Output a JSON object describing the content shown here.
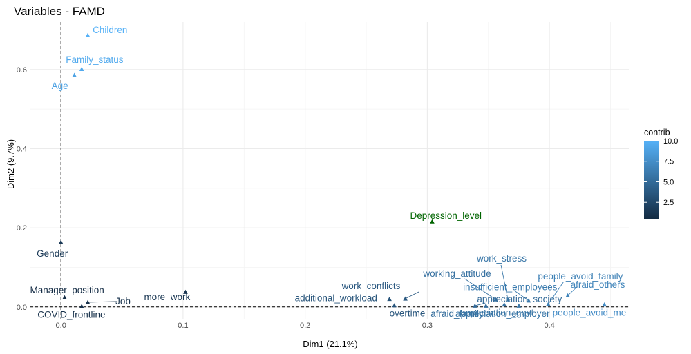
{
  "chart_data": {
    "type": "scatter",
    "title": "Variables - FAMD",
    "xlabel": "Dim1 (21.1%)",
    "ylabel": "Dim2 (9.7%)",
    "xlim": [
      -0.025,
      0.465
    ],
    "ylim": [
      -0.03,
      0.72
    ],
    "x_ticks": [
      0.0,
      0.1,
      0.2,
      0.3,
      0.4
    ],
    "x_tick_labels": [
      "0.0",
      "0.1",
      "0.2",
      "0.3",
      "0.4"
    ],
    "y_ticks": [
      0.0,
      0.2,
      0.4,
      0.6
    ],
    "y_tick_labels": [
      "0.0",
      "0.2",
      "0.4",
      "0.6"
    ],
    "grid": true,
    "reference_lines": {
      "x": 0,
      "y": 0
    },
    "legend": {
      "title": "contrib",
      "position": "right",
      "ticks": [
        "2.5",
        "5.0",
        "7.5",
        "10.0"
      ],
      "tick_values": [
        2.5,
        5.0,
        7.5,
        10.0
      ],
      "range": [
        0.5,
        10.0
      ],
      "low_color": "#132b43",
      "high_color": "#56b1f7"
    },
    "points": [
      {
        "label": "Children",
        "x": 0.022,
        "y": 0.687,
        "contrib": 10.0
      },
      {
        "label": "Family_status",
        "x": 0.017,
        "y": 0.601,
        "contrib": 9.5
      },
      {
        "label": "Age",
        "x": 0.011,
        "y": 0.586,
        "contrib": 9.0
      },
      {
        "label": "Depression_level",
        "x": 0.304,
        "y": 0.216,
        "supplementary": true
      },
      {
        "label": "Gender",
        "x": 0.0,
        "y": 0.164,
        "contrib": 1.5
      },
      {
        "label": "Manager_position",
        "x": 0.003,
        "y": 0.024,
        "contrib": 0.6
      },
      {
        "label": "Job",
        "x": 0.022,
        "y": 0.012,
        "contrib": 1.0
      },
      {
        "label": "COVID_frontline",
        "x": 0.017,
        "y": 0.002,
        "contrib": 0.8
      },
      {
        "label": "more_work",
        "x": 0.102,
        "y": 0.038,
        "contrib": 1.3
      },
      {
        "label": "additional_workload",
        "x": 0.269,
        "y": 0.02,
        "contrib": 3.4
      },
      {
        "label": "overtime",
        "x": 0.273,
        "y": 0.004,
        "contrib": 3.5
      },
      {
        "label": "work_conflicts",
        "x": 0.282,
        "y": 0.021,
        "contrib": 3.7
      },
      {
        "label": "appreciation_society",
        "x": 0.339,
        "y": 0.003,
        "contrib": 5.0
      },
      {
        "label": "afraid_family",
        "x": 0.348,
        "y": 0.003,
        "contrib": 5.2
      },
      {
        "label": "working_attitude",
        "x": 0.356,
        "y": 0.019,
        "contrib": 5.4
      },
      {
        "label": "appreciation_govt",
        "x": 0.363,
        "y": 0.006,
        "contrib": 5.5
      },
      {
        "label": "appreciation_employer",
        "x": 0.375,
        "y": 0.003,
        "contrib": 5.8
      },
      {
        "label": "work_stress",
        "x": 0.366,
        "y": 0.019,
        "contrib": 5.8
      },
      {
        "label": "insufficient_employees",
        "x": 0.383,
        "y": 0.016,
        "contrib": 6.1
      },
      {
        "label": "people_avoid_family",
        "x": 0.399,
        "y": 0.007,
        "contrib": 6.5
      },
      {
        "label": "afraid_others",
        "x": 0.415,
        "y": 0.029,
        "contrib": 6.8
      },
      {
        "label": "people_avoid_me",
        "x": 0.445,
        "y": 0.006,
        "contrib": 7.4
      }
    ]
  }
}
